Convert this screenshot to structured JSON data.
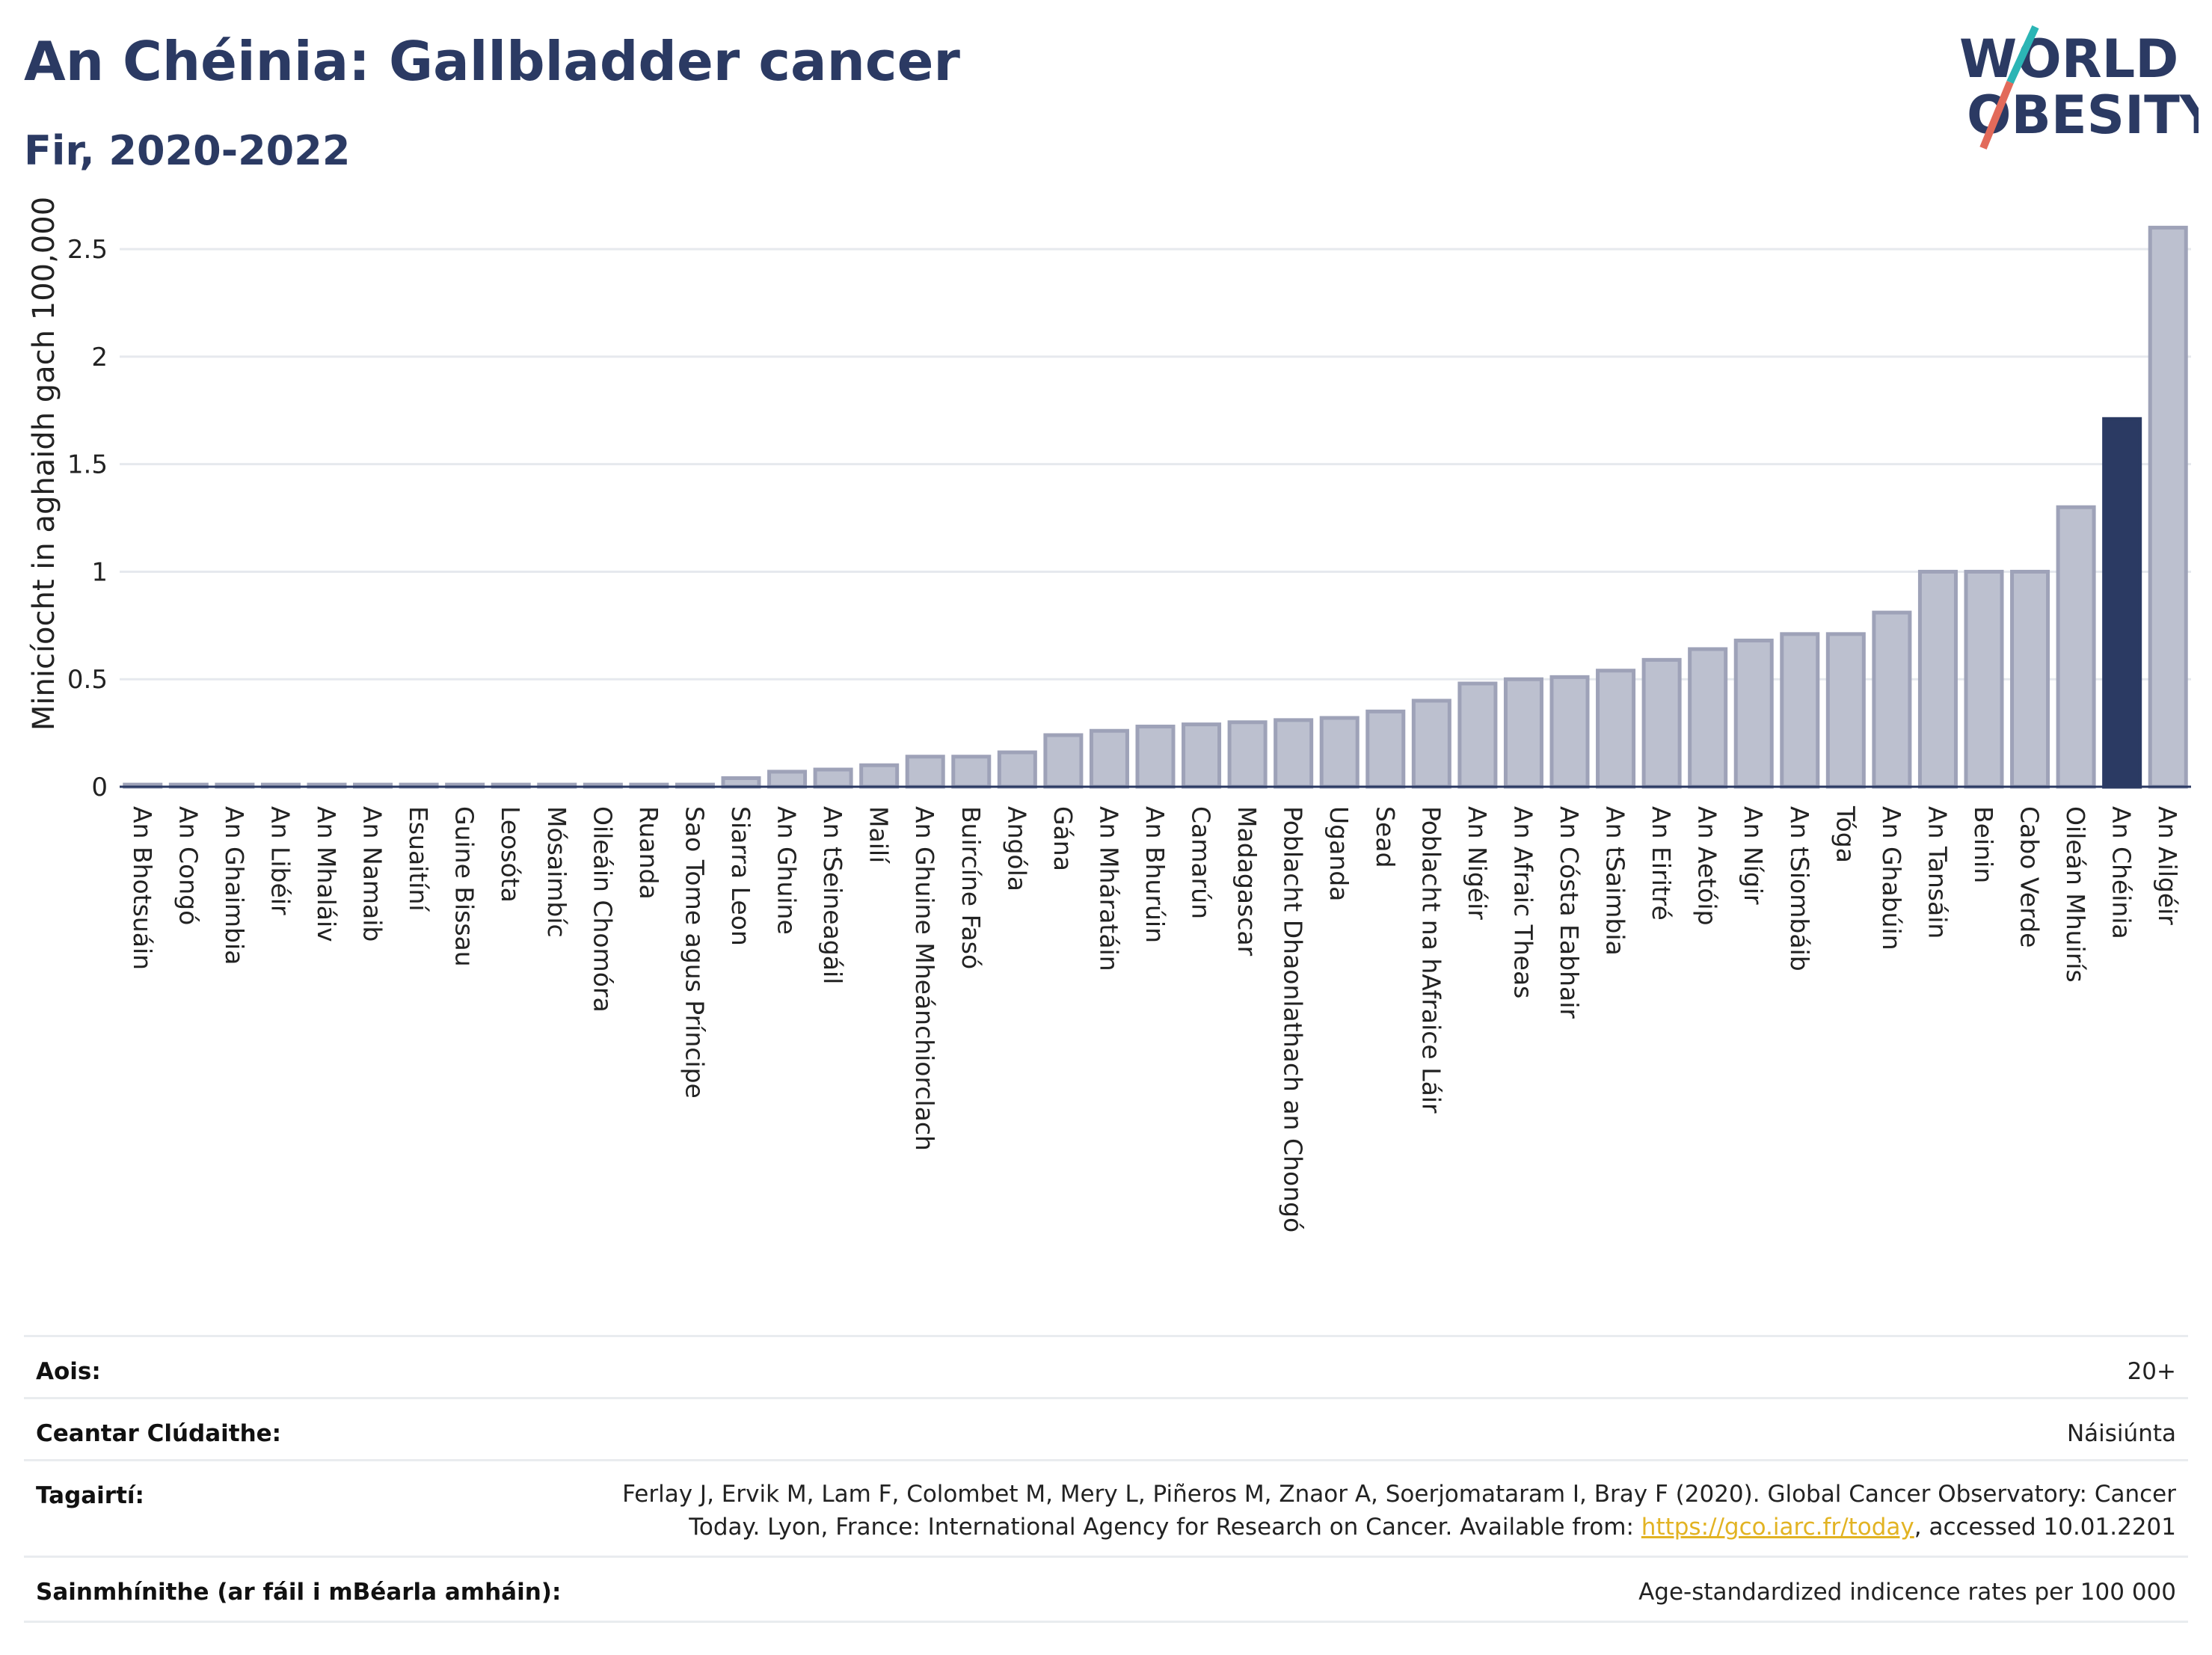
{
  "header": {
    "title": "An Chéinia: Gallbladder cancer",
    "subtitle": "Fir, 2020-2022"
  },
  "logo": {
    "line1": "WORLD",
    "line2": "OBESITY"
  },
  "chart_data": {
    "type": "bar",
    "ylabel": "Minicíocht in aghaidh gach 100,000",
    "xlabel": "",
    "ylim": [
      0,
      2.65
    ],
    "yticks": [
      0,
      0.5,
      1,
      1.5,
      2,
      2.5
    ],
    "ytick_labels": [
      "0",
      "0.5",
      "1",
      "1.5",
      "2",
      "2.5"
    ],
    "grid": true,
    "highlight": "An Chéinia",
    "colors": {
      "default": "#bcc0cf",
      "default_stroke": "#9ea2b8",
      "highlight": "#2b3a63"
    },
    "categories": [
      "An Bhotsuáin",
      "An Congó",
      "An Ghaimbia",
      "An Libéir",
      "An Mhaláiv",
      "An Namaib",
      "Esuaitíní",
      "Guine Bissau",
      "Leosóta",
      "Mósaimbíc",
      "Oileáin Chomóra",
      "Ruanda",
      "Sao Tome agus Príncipe",
      "Siarra Leon",
      "An Ghuine",
      "An tSeineagáil",
      "Mailí",
      "An Ghuine Mheánchiorclach",
      "Buircíne Fasó",
      "Angóla",
      "Gána",
      "An Mháratáin",
      "An Bhurúin",
      "Camarún",
      "Madagascar",
      "Poblacht Dhaonlathach an Chongó",
      "Uganda",
      "Sead",
      "Poblacht na hAfraice Láir",
      "An Nigéir",
      "An Afraic Theas",
      "An Cósta Eabhair",
      "An tSaimbia",
      "An Eiritré",
      "An Aetóip",
      "An Nígir",
      "An tSiombáib",
      "Tóga",
      "An Ghabúin",
      "An Tansáin",
      "Beinin",
      "Cabo Verde",
      "Oileán Mhuirís",
      "An Chéinia",
      "An Ailgéir"
    ],
    "values": [
      0.01,
      0.01,
      0.01,
      0.01,
      0.01,
      0.01,
      0.01,
      0.01,
      0.01,
      0.01,
      0.01,
      0.01,
      0.01,
      0.04,
      0.07,
      0.08,
      0.1,
      0.14,
      0.14,
      0.16,
      0.24,
      0.26,
      0.28,
      0.29,
      0.3,
      0.31,
      0.32,
      0.35,
      0.4,
      0.48,
      0.5,
      0.51,
      0.54,
      0.59,
      0.64,
      0.68,
      0.71,
      0.71,
      0.81,
      1.0,
      1.0,
      1.0,
      1.3,
      1.71,
      2.6
    ]
  },
  "meta": [
    {
      "key": "Aois:",
      "value": "20+"
    },
    {
      "key": "Ceantar Clúdaithe:",
      "value": "Náisiúnta"
    },
    {
      "key": "Tagairtí:",
      "value_pre": "Ferlay J, Ervik M, Lam F, Colombet M, Mery L, Piñeros M, Znaor A, Soerjomataram I, Bray F (2020). Global Cancer Observatory: Cancer Today. Lyon, France: International Agency for Research on Cancer. Available from: ",
      "link": "https://gco.iarc.fr/today",
      "value_post": ", accessed 10.01.2201"
    },
    {
      "key": "Sainmhínithe (ar fáil i mBéarla amháin):",
      "value": "Age-standardized indicence rates per 100 000"
    }
  ]
}
